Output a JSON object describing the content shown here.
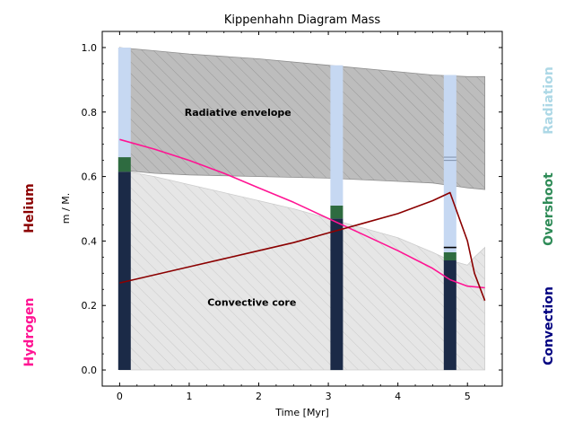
{
  "chart_data": {
    "type": "area",
    "title": "Kippenhahn Diagram Mass",
    "xlabel": "Time [Myr]",
    "ylabel": "m / M.",
    "xlim": [
      -0.25,
      5.5
    ],
    "ylim": [
      -0.05,
      1.05
    ],
    "xticks": [
      "0",
      "1",
      "2",
      "3",
      "4",
      "5"
    ],
    "yticks": [
      "0.0",
      "0.2",
      "0.4",
      "0.6",
      "0.8",
      "1.0"
    ],
    "regions": [
      {
        "label": "Radiative envelope",
        "x": [
          0.0,
          0.5,
          1.0,
          2.0,
          3.0,
          4.0,
          4.5,
          5.0,
          5.25
        ],
        "upper": [
          1.0,
          0.99,
          0.98,
          0.965,
          0.945,
          0.925,
          0.915,
          0.91,
          0.91
        ],
        "lower": [
          0.62,
          0.61,
          0.605,
          0.6,
          0.595,
          0.585,
          0.58,
          0.565,
          0.56
        ]
      },
      {
        "label": "Convective core",
        "x": [
          0.0,
          0.5,
          1.0,
          1.5,
          2.0,
          2.5,
          3.0,
          3.5,
          4.0,
          4.5,
          4.75,
          5.0,
          5.1,
          5.25
        ],
        "upper": [
          0.62,
          0.6,
          0.575,
          0.55,
          0.525,
          0.5,
          0.47,
          0.44,
          0.41,
          0.365,
          0.34,
          0.325,
          0.35,
          0.38
        ],
        "lower": [
          0,
          0,
          0,
          0,
          0,
          0,
          0,
          0,
          0,
          0,
          0,
          0,
          0,
          0
        ]
      }
    ],
    "series": [
      {
        "name": "Hydrogen",
        "color": "#ff1493",
        "x": [
          0.0,
          0.5,
          1.0,
          1.5,
          2.0,
          2.5,
          3.0,
          3.5,
          4.0,
          4.5,
          4.75,
          5.0,
          5.25
        ],
        "values": [
          0.715,
          0.685,
          0.65,
          0.61,
          0.565,
          0.52,
          0.47,
          0.42,
          0.37,
          0.315,
          0.28,
          0.26,
          0.255
        ]
      },
      {
        "name": "Helium",
        "color": "#8b0000",
        "x": [
          0.0,
          0.5,
          1.0,
          1.5,
          2.0,
          2.5,
          3.0,
          3.5,
          4.0,
          4.5,
          4.75,
          5.0,
          5.1,
          5.25
        ],
        "values": [
          0.27,
          0.295,
          0.32,
          0.345,
          0.37,
          0.395,
          0.425,
          0.455,
          0.485,
          0.525,
          0.55,
          0.4,
          0.3,
          0.215
        ]
      }
    ],
    "profiles": [
      {
        "x": 0.07,
        "segments": [
          {
            "type": "Convection",
            "from": 0.0,
            "to": 0.615
          },
          {
            "type": "Overshoot",
            "from": 0.615,
            "to": 0.66
          },
          {
            "type": "Radiation",
            "from": 0.66,
            "to": 1.0
          }
        ],
        "ticks": []
      },
      {
        "x": 3.12,
        "segments": [
          {
            "type": "Convection",
            "from": 0.0,
            "to": 0.47
          },
          {
            "type": "Overshoot",
            "from": 0.47,
            "to": 0.51
          },
          {
            "type": "Radiation",
            "from": 0.51,
            "to": 0.945
          }
        ],
        "ticks": []
      },
      {
        "x": 4.75,
        "segments": [
          {
            "type": "Convection",
            "from": 0.0,
            "to": 0.34
          },
          {
            "type": "Overshoot",
            "from": 0.34,
            "to": 0.365
          },
          {
            "type": "Radiation",
            "from": 0.365,
            "to": 0.915
          }
        ],
        "ticks": [
          0.38,
          0.65,
          0.66
        ]
      }
    ],
    "legend": [
      {
        "label": "Radiation",
        "color": "#add8e6",
        "placement": "right"
      },
      {
        "label": "Overshoot",
        "color": "#2e8b57",
        "placement": "right"
      },
      {
        "label": "Convection",
        "color": "#000080",
        "placement": "right"
      },
      {
        "label": "Helium",
        "color": "#8b0000",
        "placement": "left"
      },
      {
        "label": "Hydrogen",
        "color": "#ff1493",
        "placement": "left"
      }
    ],
    "colors": {
      "Convection": "#1b2a47",
      "Overshoot": "#2e6b40",
      "Radiation": "#c6d8f2",
      "envelope_fill": "#bdbdbd",
      "core_fill": "#e6e6e6"
    },
    "grid": false
  }
}
